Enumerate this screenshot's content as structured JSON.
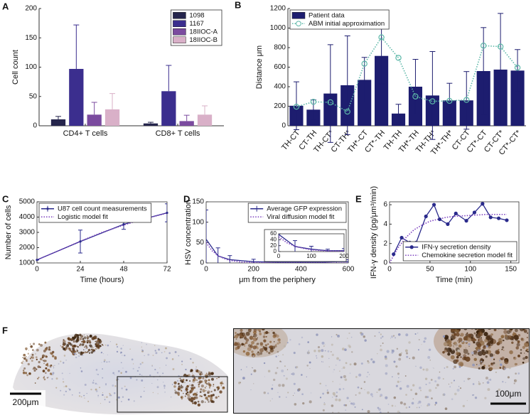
{
  "panels": [
    "A",
    "B",
    "C",
    "D",
    "E",
    "F"
  ],
  "images": {
    "scale_bars": [
      "200μm",
      "100μm"
    ]
  },
  "chart_data": [
    {
      "type": "bar",
      "ylabel": "Cell count",
      "categories": [
        "CD4+ T cells",
        "CD8+ T cells"
      ],
      "series": [
        {
          "name": "1098",
          "color": "#25254c",
          "values": [
            11,
            4
          ],
          "errors": [
            5,
            2
          ]
        },
        {
          "name": "1167",
          "color": "#3b2e8e",
          "values": [
            97,
            59
          ],
          "errors": [
            75,
            44
          ]
        },
        {
          "name": "18IIOC-A",
          "color": "#7b4b9f",
          "values": [
            19,
            8
          ],
          "errors": [
            21,
            10
          ]
        },
        {
          "name": "18IIOC-B",
          "color": "#d9b0c8",
          "values": [
            28,
            19
          ],
          "errors": [
            27,
            15
          ]
        }
      ],
      "ylim": [
        0,
        200
      ],
      "yticks": [
        0,
        50,
        100,
        150,
        200
      ],
      "error_bars": "upper",
      "legend": "upper right"
    },
    {
      "type": "bar",
      "ylabel": "Distance μm",
      "categories": [
        "TH-CT",
        "CT-TH",
        "TH-CT*",
        "CT-TH*",
        "TH*-CT",
        "CT*-TH",
        "TH-TH",
        "TH*-TH",
        "TH-TH*",
        "TH*-TH*",
        "CT-CT",
        "CT*-CT",
        "CT-CT*",
        "CT*-CT*"
      ],
      "series": [
        {
          "name": "Patient data",
          "color": "#1d1d6f",
          "values": [
            205,
            165,
            330,
            415,
            470,
            715,
            125,
            400,
            310,
            260,
            260,
            560,
            575,
            565
          ],
          "errors": [
            245,
            100,
            500,
            505,
            230,
            285,
            95,
            280,
            450,
            175,
            295,
            445,
            575,
            215
          ]
        },
        {
          "name": "ABM initial approximation",
          "type": "line",
          "color": "#5db8a8",
          "line_style": "dotted",
          "marker": "open-circle",
          "values": [
            195,
            245,
            240,
            145,
            635,
            905,
            695,
            300,
            250,
            255,
            265,
            820,
            810,
            595
          ]
        }
      ],
      "ylim": [
        0,
        1200
      ],
      "yticks": [
        0,
        200,
        400,
        600,
        800,
        1000,
        1200
      ],
      "error_bars": "both",
      "legend": "upper left"
    },
    {
      "type": "line",
      "xlabel": "Time (hours)",
      "ylabel": "Number of cells",
      "series": [
        {
          "name": "U87 cell count measurements",
          "color": "#2a2a8c",
          "line_style": "solid",
          "marker": "dot",
          "x": [
            0,
            24,
            48,
            72
          ],
          "values": [
            1200,
            2400,
            3530,
            4280
          ],
          "errors": [
            0,
            750,
            330,
            590
          ]
        },
        {
          "name": "Logistic model fit",
          "color": "#7b3fbf",
          "line_style": "dotted",
          "marker": "none",
          "x": [
            0,
            12,
            24,
            36,
            48,
            60,
            72
          ],
          "values": [
            1200,
            1800,
            2420,
            3000,
            3480,
            3900,
            4260
          ]
        }
      ],
      "xlim": [
        0,
        72
      ],
      "xticks": [
        0,
        24,
        48,
        72
      ],
      "ylim": [
        1000,
        5000
      ],
      "yticks": [
        1000,
        2000,
        3000,
        4000,
        5000
      ],
      "box": true,
      "error_bars": "both",
      "legend": "upper left"
    },
    {
      "type": "line",
      "xlabel": "μm from the periphery",
      "ylabel": "HSV concentration",
      "series": [
        {
          "name": "Average GFP expression",
          "color": "#2a2a8c",
          "line_style": "solid",
          "marker": "none",
          "x": [
            0,
            50,
            100,
            200,
            300,
            400,
            500,
            550,
            600
          ],
          "values": [
            58,
            17,
            8,
            3,
            2,
            2,
            2,
            3,
            3
          ],
          "errors": [
            72,
            20,
            10,
            6,
            3,
            3,
            3,
            6,
            5
          ]
        },
        {
          "name": "Viral diffusion model fit",
          "color": "#7b3fbf",
          "line_style": "dotted",
          "marker": "none",
          "x": [
            0,
            25,
            50,
            75,
            100,
            150,
            200,
            300,
            400,
            500,
            600
          ],
          "values": [
            50,
            30,
            18,
            11,
            6,
            2,
            1,
            0,
            0,
            0,
            0
          ]
        }
      ],
      "xlim": [
        0,
        600
      ],
      "xticks": [
        0,
        200,
        400,
        600
      ],
      "ylim": [
        0,
        150
      ],
      "yticks": [
        0,
        50,
        100,
        150
      ],
      "box": true,
      "error_bars": "both",
      "legend": "upper right"
    },
    {
      "type": "line",
      "series": [
        {
          "color": "#2a2a8c",
          "line_style": "solid",
          "marker": "none",
          "x": [
            0,
            50,
            100,
            150,
            200
          ],
          "values": [
            58,
            17,
            8,
            3,
            3
          ],
          "errors": [
            72,
            20,
            10,
            5,
            7
          ]
        },
        {
          "color": "#7b3fbf",
          "line_style": "dotted",
          "marker": "none",
          "x": [
            0,
            25,
            50,
            75,
            100,
            150,
            200
          ],
          "values": [
            50,
            30,
            18,
            11,
            6,
            2,
            1
          ]
        }
      ],
      "xlim": [
        0,
        200
      ],
      "xticks": [
        0,
        100,
        200
      ],
      "ylim": [
        0,
        60
      ],
      "yticks": [
        0,
        20,
        40,
        60
      ],
      "box": true,
      "error_bars": "both"
    },
    {
      "type": "line",
      "xlabel": "Time (min)",
      "ylabel": "IFN-γ density (pg/μm³/min)",
      "series": [
        {
          "name": "IFN-γ secretion density",
          "color": "#2a2a8c",
          "line_style": "solid",
          "marker": "circle",
          "x": [
            5,
            15,
            25,
            33,
            45,
            55,
            62,
            72,
            82,
            95,
            105,
            115,
            125,
            135,
            145
          ],
          "values": [
            0.9,
            2.6,
            2.1,
            2.1,
            4.8,
            6.0,
            4.5,
            4.0,
            5.1,
            4.35,
            5.2,
            6.1,
            4.7,
            4.6,
            4.4
          ]
        },
        {
          "name": "Chemokine secretion model fit",
          "color": "#7b3fbf",
          "line_style": "dotted",
          "marker": "none",
          "x": [
            0,
            10,
            20,
            30,
            40,
            50,
            60,
            70,
            80,
            100,
            120,
            145
          ],
          "values": [
            0,
            1.5,
            2.6,
            3.4,
            3.9,
            4.3,
            4.5,
            4.7,
            4.8,
            4.9,
            5.0,
            5.0
          ]
        }
      ],
      "xlim": [
        0,
        160
      ],
      "xticks": [
        0,
        50,
        100,
        150
      ],
      "ylim": [
        0,
        6.3
      ],
      "yticks": [
        0,
        2,
        4,
        6
      ],
      "box": true,
      "legend": "lower right"
    }
  ]
}
